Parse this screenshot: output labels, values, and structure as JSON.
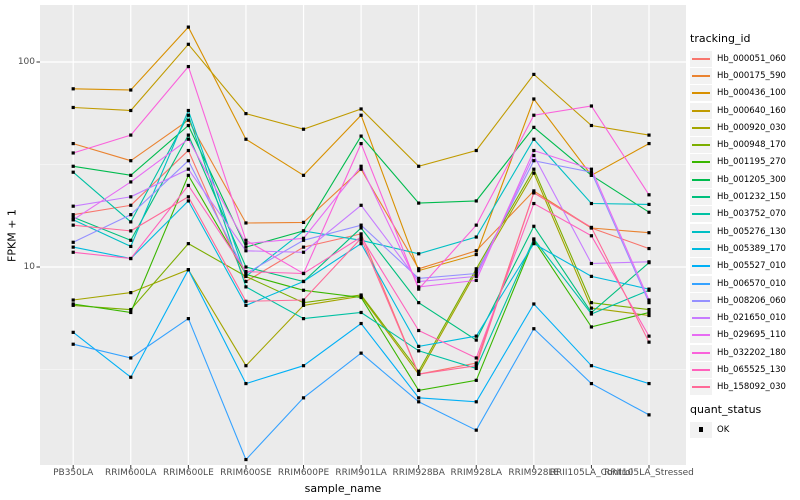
{
  "chart_data": {
    "type": "line",
    "title": "",
    "xlabel": "sample_name",
    "ylabel": "FPKM + 1",
    "y_scale": "log10",
    "y_ticks": [
      {
        "label": "100",
        "value": 100
      },
      {
        "label": "10",
        "value": 10
      }
    ],
    "y_minor_gridlines": [
      31.62,
      3.162
    ],
    "ylim_log": [
      1.08,
      190
    ],
    "grid": "on",
    "legend_position": "right",
    "legend_title": "tracking_id",
    "quant_legend_title": "quant_status",
    "quant_items": [
      {
        "label": "OK",
        "marker": "black-square"
      }
    ],
    "panel_bg": "#EBEBEB",
    "grid_color": "#FFFFFF",
    "marker_color": "#000000",
    "categories": [
      "PB350LA",
      "RRIM600LA",
      "RRIM600LE",
      "RRIM600SE",
      "RRIM600PE",
      "RRIM901LA",
      "RRIM928BA",
      "RRIM928LA",
      "RRIM928LE",
      "RRII105LA_Control",
      "RRII105LA_Stressed"
    ],
    "series": [
      {
        "name": "Hb_000051_060",
        "color": "#F8766D",
        "values": [
          18,
          20,
          37,
          8.5,
          12.5,
          14.5,
          3.0,
          3.4,
          23,
          15.5,
          12.3
        ]
      },
      {
        "name": "Hb_000175_590",
        "color": "#EA8331",
        "values": [
          40,
          33,
          52,
          16.4,
          16.5,
          30,
          9.8,
          12,
          23.5,
          15.5,
          14.7
        ]
      },
      {
        "name": "Hb_000436_100",
        "color": "#D89000",
        "values": [
          74,
          73,
          148,
          42,
          28,
          55,
          9.6,
          11.5,
          66,
          28,
          40
        ]
      },
      {
        "name": "Hb_000640_160",
        "color": "#C09B00",
        "values": [
          60,
          58,
          122,
          56,
          47,
          59,
          31,
          37,
          87,
          49,
          44
        ]
      },
      {
        "name": "Hb_000920_030",
        "color": "#A3A500",
        "values": [
          6.9,
          7.5,
          9.7,
          3.3,
          6.5,
          7.2,
          3.0,
          9.5,
          28.7,
          6.3,
          5.8
        ]
      },
      {
        "name": "Hb_000948_170",
        "color": "#7CAE00",
        "values": [
          6.5,
          6.2,
          13,
          9.0,
          6.7,
          7.3,
          3.1,
          9.8,
          30,
          6.7,
          6.2
        ]
      },
      {
        "name": "Hb_001195_270",
        "color": "#39B600",
        "values": [
          6.6,
          6.0,
          28,
          9.2,
          7.7,
          7.1,
          2.5,
          2.8,
          13.5,
          5.1,
          6.0
        ]
      },
      {
        "name": "Hb_001205_300",
        "color": "#00BB4E",
        "values": [
          31,
          28,
          49,
          12.5,
          15,
          43.5,
          20.5,
          21,
          48,
          28,
          18.5
        ]
      },
      {
        "name": "Hb_001232_150",
        "color": "#00BF7D",
        "values": [
          17.5,
          13.5,
          44,
          10,
          8.5,
          15.5,
          6.7,
          4.4,
          15.8,
          6.0,
          10.5
        ]
      },
      {
        "name": "Hb_003752_070",
        "color": "#00C1A3",
        "values": [
          29,
          16.6,
          55,
          8.0,
          5.6,
          6.0,
          3.9,
          3.2,
          13.7,
          5.9,
          7.7
        ]
      },
      {
        "name": "Hb_005276_130",
        "color": "#00BFC4",
        "values": [
          17,
          12.6,
          58,
          9.0,
          15,
          13.5,
          11.6,
          14,
          42,
          20.4,
          20.2
        ]
      },
      {
        "name": "Hb_005389_170",
        "color": "#00BADE",
        "values": [
          12.5,
          11,
          21,
          6.5,
          8.5,
          13,
          4.1,
          4.6,
          13,
          9.0,
          7.8
        ]
      },
      {
        "name": "Hb_005527_010",
        "color": "#00B0F6",
        "values": [
          4.8,
          2.9,
          9.7,
          2.7,
          3.3,
          5.3,
          2.3,
          2.2,
          6.6,
          3.3,
          2.7
        ]
      },
      {
        "name": "Hb_006570_010",
        "color": "#35A2FF",
        "values": [
          4.2,
          3.6,
          5.6,
          1.15,
          2.3,
          3.8,
          2.2,
          1.6,
          5.0,
          2.7,
          1.9
        ]
      },
      {
        "name": "Hb_008206_060",
        "color": "#9590FF",
        "values": [
          13.2,
          18,
          33,
          9.3,
          13.5,
          16,
          8.8,
          9.3,
          33,
          29,
          6.7
        ]
      },
      {
        "name": "Hb_021650_010",
        "color": "#C77CFF",
        "values": [
          19.8,
          22,
          30,
          12,
          11.8,
          20,
          8.5,
          9.0,
          35,
          10.4,
          10.6
        ]
      },
      {
        "name": "Hb_029695_110",
        "color": "#E76BF3",
        "values": [
          17,
          26,
          42,
          13,
          13.8,
          31,
          8.0,
          8.6,
          37,
          30,
          6.9
        ]
      },
      {
        "name": "Hb_032202_180",
        "color": "#FA62DB",
        "values": [
          36,
          44,
          95,
          13.5,
          9.3,
          40,
          7.8,
          16,
          55,
          61,
          22.5
        ]
      },
      {
        "name": "Hb_065525_130",
        "color": "#FF62BC",
        "values": [
          11.8,
          11,
          25,
          9.5,
          9.3,
          14,
          4.9,
          3.6,
          20.4,
          14.2,
          4.6
        ]
      },
      {
        "name": "Hb_158092_030",
        "color": "#FF6A98",
        "values": [
          16,
          15,
          22,
          6.8,
          6.9,
          13.8,
          3.0,
          3.3,
          23,
          15.6,
          4.3
        ]
      }
    ]
  }
}
